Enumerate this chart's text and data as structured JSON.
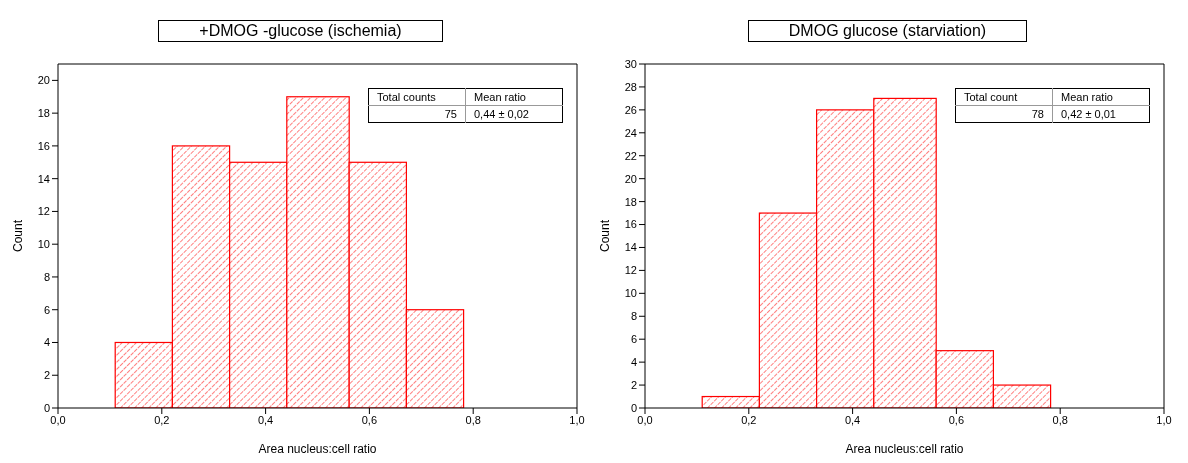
{
  "chart_data": [
    {
      "type": "histogram",
      "title": "+DMOG -glucose  (ischemia)",
      "xlabel": "Area nucleus:cell ratio",
      "ylabel": "Count",
      "bins": [
        0.11,
        0.22,
        0.33,
        0.44,
        0.56,
        0.67,
        0.78
      ],
      "values": [
        4,
        16,
        15,
        19,
        15,
        6
      ],
      "color": "#ff0000",
      "xlim": [
        0,
        1
      ],
      "xticks": [
        {
          "value": 0,
          "label": "0,0"
        },
        {
          "value": 0.2,
          "label": "0,2"
        },
        {
          "value": 0.4,
          "label": "0,4"
        },
        {
          "value": 0.6,
          "label": "0,6"
        },
        {
          "value": 0.8,
          "label": "0,8"
        },
        {
          "value": 1,
          "label": "1,0"
        }
      ],
      "ylim": [
        0,
        21
      ],
      "yticks": [
        0,
        2,
        4,
        6,
        8,
        10,
        12,
        14,
        16,
        18,
        20
      ],
      "grid": false,
      "legend": false,
      "annotations": [
        "Total counts",
        "Mean ratio",
        "75",
        "0,44 ± 0,02"
      ]
    },
    {
      "type": "histogram",
      "title": "DMOG  glucose  (starviation)",
      "xlabel": "Area nucleus:cell ratio",
      "ylabel": "Count",
      "bins": [
        0.11,
        0.22,
        0.33,
        0.44,
        0.56,
        0.67,
        0.78
      ],
      "values": [
        1,
        17,
        26,
        27,
        5,
        2
      ],
      "color": "#ff0000",
      "xlim": [
        0,
        1
      ],
      "xticks": [
        {
          "value": 0,
          "label": "0,0"
        },
        {
          "value": 0.2,
          "label": "0,2"
        },
        {
          "value": 0.4,
          "label": "0,4"
        },
        {
          "value": 0.6,
          "label": "0,6"
        },
        {
          "value": 0.8,
          "label": "0,8"
        },
        {
          "value": 1,
          "label": "1,0"
        }
      ],
      "ylim": [
        0,
        30
      ],
      "yticks": [
        0,
        2,
        4,
        6,
        8,
        10,
        12,
        14,
        16,
        18,
        20,
        22,
        24,
        26,
        28,
        30
      ],
      "grid": false,
      "legend": false,
      "annotations": [
        "Total count",
        "Mean ratio",
        "78",
        "0,42 ± 0,01"
      ]
    }
  ]
}
